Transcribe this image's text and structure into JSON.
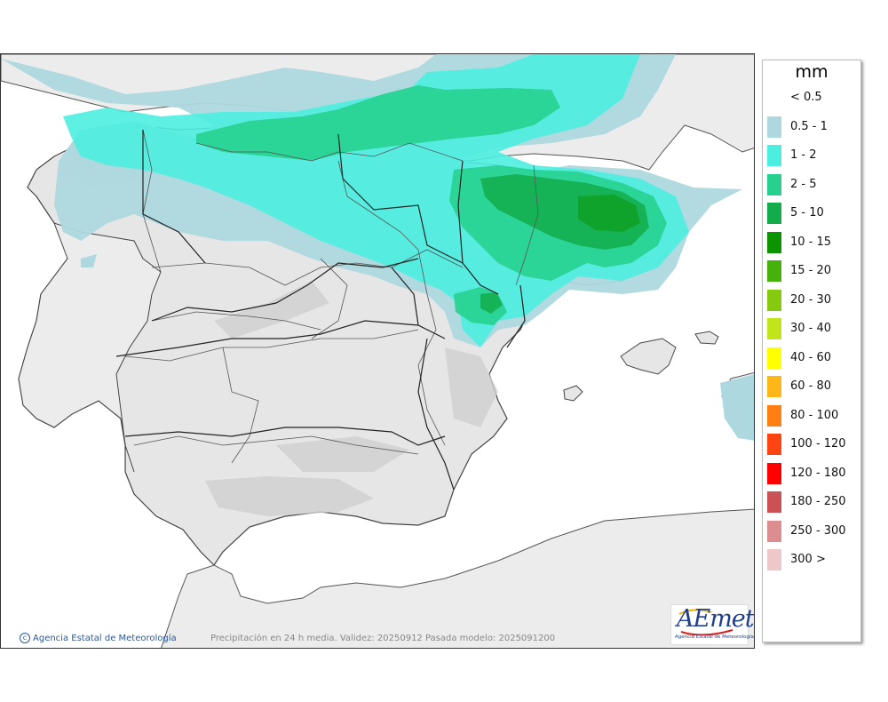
{
  "legend": {
    "unit": "mm",
    "items": [
      {
        "label": "< 0.5",
        "color": "#ffffff"
      },
      {
        "label": "0.5 - 1",
        "color": "#add8df"
      },
      {
        "label": "1 - 2",
        "color": "#4ceee0"
      },
      {
        "label": "2 - 5",
        "color": "#27d08f"
      },
      {
        "label": "5 - 10",
        "color": "#12ad4a"
      },
      {
        "label": "10 - 15",
        "color": "#0b9400"
      },
      {
        "label": "15 - 20",
        "color": "#45b20b"
      },
      {
        "label": "20 - 30",
        "color": "#86ca0f"
      },
      {
        "label": "30 - 40",
        "color": "#c1e41a"
      },
      {
        "label": "40 - 60",
        "color": "#ffff00"
      },
      {
        "label": "60 - 80",
        "color": "#ffb619"
      },
      {
        "label": "80 - 100",
        "color": "#ff7f12"
      },
      {
        "label": "100 - 120",
        "color": "#ff4413"
      },
      {
        "label": "120 - 180",
        "color": "#ff0000"
      },
      {
        "label": "180 - 250",
        "color": "#cc5155"
      },
      {
        "label": "250 - 300",
        "color": "#dd8d8f"
      },
      {
        "label": "300 >",
        "color": "#eec7c8"
      }
    ]
  },
  "credit": "Agencia Estatal de Meteorología",
  "caption": "Precipitación en 24 h media. Validez: 20250912 Pasada modelo: 2025091200",
  "logo": {
    "word": "AEmet",
    "sub": "Agencia Estatal de Meteorología"
  },
  "colors": {
    "sea": "#ffffff",
    "land": "#e4e4e4",
    "relief": "#cfcfcf",
    "border": "#333333"
  }
}
